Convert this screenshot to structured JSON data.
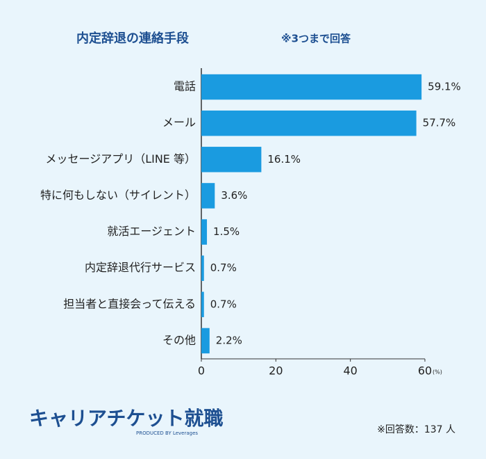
{
  "chart_data": {
    "type": "bar",
    "orientation": "horizontal",
    "title": "内定辞退の連絡手段",
    "subtitle": "※3つまで回答",
    "categories": [
      "電話",
      "メール",
      "メッセージアプリ（LINE 等）",
      "特に何もしない（サイレント）",
      "就活エージェント",
      "内定辞退代行サービス",
      "担当者と直接会って伝える",
      "その他"
    ],
    "values": [
      59.1,
      57.7,
      16.1,
      3.6,
      1.5,
      0.7,
      0.7,
      2.2
    ],
    "value_labels": [
      "59.1%",
      "57.7%",
      "16.1%",
      "3.6%",
      "1.5%",
      "0.7%",
      "0.7%",
      "2.2%"
    ],
    "color": "#1a9be0",
    "xlim": [
      0,
      60
    ],
    "xticks": [
      0,
      20,
      40,
      60
    ],
    "x_unit": "(%)",
    "note": "※回答数：137 人"
  },
  "brand": {
    "name": "キャリアチケット就職",
    "credit": "PRODUCED BY Leverages"
  }
}
